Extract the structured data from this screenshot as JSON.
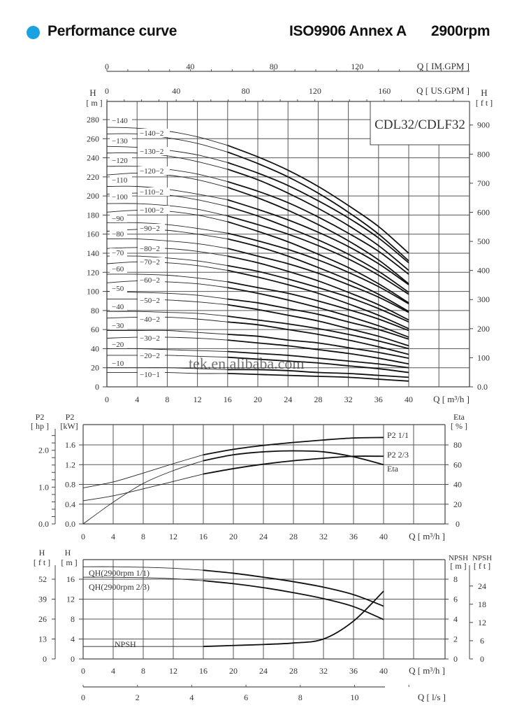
{
  "header": {
    "title": "Performance curve",
    "standard": "ISO9906 Annex A",
    "speed": "2900rpm",
    "accent_color": "#1ba1e2"
  },
  "main_chart": {
    "model_label": "CDL32/CDLF32",
    "im_gpm_axis": {
      "label": "Q [ IM.GPM ]",
      "ticks": [
        "0",
        "40",
        "80",
        "120"
      ]
    },
    "us_gpm_axis": {
      "label": "Q [ US.GPM ]",
      "ticks": [
        "0",
        "40",
        "80",
        "120",
        "160"
      ]
    },
    "left_axis": {
      "title": "H",
      "unit": "[ m ]",
      "ticks": [
        "0",
        "20",
        "40",
        "60",
        "80",
        "100",
        "120",
        "140",
        "160",
        "180",
        "200",
        "220",
        "240",
        "260",
        "280"
      ]
    },
    "right_axis": {
      "title": "H",
      "unit": "[ f t ]",
      "ticks": [
        "0.0",
        "100",
        "200",
        "300",
        "400",
        "500",
        "600",
        "700",
        "800",
        "900"
      ]
    },
    "x_axis": {
      "label": "Q [ m³/h ]",
      "ticks": [
        "0",
        "4",
        "8",
        "12",
        "16",
        "20",
        "24",
        "28",
        "32",
        "36",
        "40"
      ]
    },
    "watermark": "tek.en.alibaba.com"
  },
  "power_chart": {
    "hp_axis": {
      "title": "P2",
      "unit": "[ hp ]",
      "ticks": [
        "0.0",
        "1.0",
        "2.0"
      ]
    },
    "kw_axis": {
      "title": "P2",
      "unit": "[kW]",
      "ticks": [
        "0.0",
        "0.4",
        "0.8",
        "1.2",
        "1.6"
      ]
    },
    "eta_axis": {
      "title": "Eta",
      "unit": "[ % ]",
      "ticks": [
        "0",
        "20",
        "40",
        "60",
        "80"
      ]
    },
    "x_axis": {
      "label": "Q [ m³/h ]",
      "ticks": [
        "0",
        "4",
        "8",
        "12",
        "16",
        "20",
        "24",
        "28",
        "32",
        "36",
        "40"
      ]
    },
    "labels": {
      "p2_full": "P2  1/1",
      "p2_23": "P2  2/3",
      "eta": "Eta"
    }
  },
  "npsh_chart": {
    "ft_axis": {
      "title": "H",
      "unit": "[ f t ]",
      "ticks": [
        "0",
        "13",
        "26",
        "39",
        "52"
      ]
    },
    "m_axis": {
      "title": "H",
      "unit": "[ m ]",
      "ticks": [
        "0",
        "4",
        "8",
        "12",
        "16"
      ]
    },
    "npsh_m_axis": {
      "title": "NPSH",
      "unit": "[ m ]",
      "ticks": [
        "0",
        "2",
        "4",
        "6",
        "8"
      ]
    },
    "npsh_ft_axis": {
      "title": "NPSH",
      "unit": "[ f t ]",
      "ticks": [
        "0",
        "6",
        "12",
        "18",
        "24"
      ]
    },
    "x_axis": {
      "label": "Q [ m³/h ]",
      "ticks": [
        "0",
        "4",
        "8",
        "12",
        "16",
        "20",
        "24",
        "28",
        "32",
        "36",
        "40"
      ]
    },
    "labels": {
      "qh_full": "QH(2900rpm 1/1)",
      "qh_23": "QH(2900rpm 2/3)",
      "npsh": "NPSH"
    }
  },
  "ls_axis": {
    "label": "Q [ l/s ]",
    "ticks": [
      "0",
      "2",
      "4",
      "6",
      "8",
      "10"
    ]
  },
  "chart_data": [
    {
      "type": "line",
      "title": "CDL32/CDLF32 Q-H curves (2900rpm)",
      "xlabel": "Q [m³/h]",
      "ylabel": "H [m]",
      "xlim": [
        0,
        48
      ],
      "ylim": [
        0,
        280
      ],
      "grid": true,
      "x": [
        0,
        4,
        8,
        12,
        16,
        20,
        24,
        28,
        32,
        36,
        40
      ],
      "series": [
        {
          "name": "-140",
          "values": [
            272,
            271,
            268,
            262,
            253,
            241,
            227,
            210,
            190,
            168,
            140
          ]
        },
        {
          "name": "-140-2",
          "values": [
            265,
            265,
            261,
            255,
            246,
            234,
            220,
            203,
            183,
            160,
            132
          ]
        },
        {
          "name": "-130",
          "values": [
            252,
            251,
            248,
            243,
            235,
            224,
            211,
            195,
            177,
            156,
            130
          ]
        },
        {
          "name": "-130-2",
          "values": [
            245,
            245,
            242,
            236,
            228,
            217,
            203,
            187,
            169,
            148,
            122
          ]
        },
        {
          "name": "-120",
          "values": [
            231,
            231,
            228,
            223,
            215,
            205,
            193,
            178,
            161,
            142,
            118
          ]
        },
        {
          "name": "-120-2",
          "values": [
            222,
            224,
            222,
            217,
            209,
            198,
            185,
            170,
            153,
            133,
            108
          ]
        },
        {
          "name": "-110",
          "values": [
            210,
            210,
            207,
            202,
            196,
            186,
            175,
            162,
            147,
            129,
            107
          ]
        },
        {
          "name": "-110-2",
          "values": [
            202,
            203,
            201,
            196,
            189,
            179,
            167,
            154,
            139,
            121,
            99
          ]
        },
        {
          "name": "-100",
          "values": [
            192,
            192,
            190,
            186,
            179,
            170,
            160,
            148,
            134,
            117,
            97
          ]
        },
        {
          "name": "-100-2",
          "values": [
            183,
            185,
            184,
            180,
            173,
            163,
            152,
            139,
            125,
            108,
            88
          ]
        },
        {
          "name": "-90",
          "values": [
            172,
            172,
            170,
            166,
            161,
            153,
            144,
            133,
            120,
            105,
            87
          ]
        },
        {
          "name": "-90-2",
          "values": [
            163,
            165,
            164,
            160,
            155,
            147,
            137,
            125,
            112,
            97,
            79
          ]
        },
        {
          "name": "-80",
          "values": [
            155,
            155,
            153,
            150,
            145,
            137,
            129,
            119,
            107,
            94,
            78
          ]
        },
        {
          "name": "-80-2",
          "values": [
            145,
            146,
            145,
            142,
            137,
            130,
            121,
            111,
            99,
            86,
            70
          ]
        },
        {
          "name": "-70",
          "values": [
            137,
            137,
            135,
            132,
            127,
            121,
            113,
            104,
            94,
            82,
            68
          ]
        },
        {
          "name": "-70-2",
          "values": [
            129,
            131,
            130,
            127,
            122,
            115,
            107,
            98,
            87,
            75,
            61
          ]
        },
        {
          "name": "-60",
          "values": [
            118,
            118,
            117,
            114,
            110,
            104,
            98,
            90,
            81,
            71,
            59
          ]
        },
        {
          "name": "-60-2",
          "values": [
            109,
            111,
            110,
            108,
            104,
            98,
            91,
            83,
            74,
            64,
            52
          ]
        },
        {
          "name": "-50",
          "values": [
            100,
            99,
            98,
            96,
            92,
            88,
            82,
            76,
            68,
            60,
            50
          ]
        },
        {
          "name": "-50-2",
          "values": [
            92,
            92,
            91,
            89,
            86,
            81,
            75,
            69,
            61,
            53,
            43
          ]
        },
        {
          "name": "-40",
          "values": [
            79,
            79,
            78,
            77,
            74,
            70,
            66,
            61,
            55,
            48,
            40
          ]
        },
        {
          "name": "-40-2",
          "values": [
            72,
            73,
            73,
            71,
            68,
            65,
            60,
            55,
            49,
            42,
            34
          ]
        },
        {
          "name": "-30",
          "values": [
            59,
            59,
            59,
            57,
            55,
            53,
            49,
            46,
            41,
            36,
            30
          ]
        },
        {
          "name": "-30-2",
          "values": [
            51,
            52,
            52,
            51,
            49,
            46,
            43,
            39,
            35,
            30,
            24
          ]
        },
        {
          "name": "-20",
          "values": [
            40,
            40,
            39,
            38,
            37,
            35,
            33,
            30,
            27,
            24,
            20
          ]
        },
        {
          "name": "-20-2",
          "values": [
            33,
            33,
            33,
            32,
            31,
            29,
            27,
            25,
            22,
            19,
            15
          ]
        },
        {
          "name": "-10",
          "values": [
            20,
            20,
            20,
            19,
            18,
            18,
            17,
            15,
            14,
            12,
            10
          ]
        },
        {
          "name": "-10-1",
          "values": [
            15,
            15,
            15,
            14,
            14,
            13,
            12,
            11,
            10,
            8,
            6
          ]
        }
      ]
    },
    {
      "type": "line",
      "title": "P2 / Eta",
      "xlabel": "Q [m³/h]",
      "ylabel": "P2 [kW]",
      "y2label": "Eta [%]",
      "xlim": [
        0,
        48
      ],
      "ylim": [
        0,
        1.8
      ],
      "y2lim": [
        0,
        90
      ],
      "grid": true,
      "x": [
        0,
        4,
        8,
        12,
        16,
        20,
        24,
        28,
        32,
        36,
        40
      ],
      "series": [
        {
          "name": "P2 1/1",
          "axis": "kW",
          "values": [
            0.73,
            0.85,
            1.03,
            1.22,
            1.4,
            1.51,
            1.59,
            1.65,
            1.7,
            1.74,
            1.75
          ]
        },
        {
          "name": "P2 2/3",
          "axis": "kW",
          "values": [
            0.47,
            0.57,
            0.71,
            0.86,
            1.01,
            1.12,
            1.21,
            1.28,
            1.33,
            1.37,
            1.37
          ]
        },
        {
          "name": "Eta",
          "axis": "%",
          "values": [
            0,
            22,
            41,
            54,
            64,
            70,
            73,
            74,
            73,
            68,
            60
          ]
        }
      ]
    },
    {
      "type": "line",
      "title": "QH / NPSH",
      "xlabel": "Q [m³/h]",
      "ylabel": "H [m]",
      "y2label": "NPSH [m]",
      "xlim": [
        0,
        48
      ],
      "ylim": [
        0,
        18
      ],
      "y2lim": [
        0,
        9
      ],
      "grid": true,
      "x": [
        0,
        4,
        8,
        12,
        16,
        20,
        24,
        28,
        32,
        36,
        40
      ],
      "series": [
        {
          "name": "QH(2900rpm 1/1)",
          "axis": "m",
          "values": [
            18.5,
            18.5,
            18.4,
            18.2,
            17.8,
            17.2,
            16.4,
            15.5,
            14.4,
            12.9,
            10.6
          ]
        },
        {
          "name": "QH(2900rpm 2/3)",
          "axis": "m",
          "values": [
            16.4,
            16.4,
            16.3,
            16.1,
            15.7,
            15.1,
            14.3,
            13.3,
            12.1,
            10.5,
            7.9
          ]
        },
        {
          "name": "NPSH",
          "axis": "NPSH m",
          "values": [
            1.25,
            1.25,
            1.25,
            1.25,
            1.25,
            1.35,
            1.45,
            1.6,
            2.0,
            3.8,
            6.8
          ]
        }
      ]
    }
  ]
}
